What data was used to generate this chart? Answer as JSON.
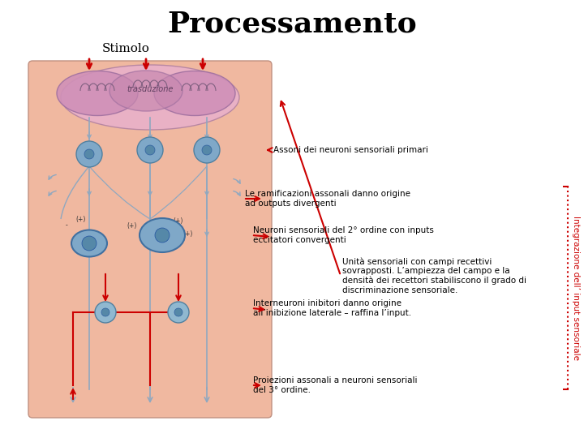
{
  "title": "Processamento",
  "title_fontsize": 26,
  "title_font": "serif",
  "stimolo_label": "Stimolo",
  "trasduzione_label": "trasduzione",
  "annotation1": "Unità sensoriali con campi recettivi\nsovrapposti. L’ampiezza del campo e la\ndensità dei recettori stabiliscono il grado di\ndiscriminazione sensoriale.",
  "annotation2": "Assoni dei neuroni sensoriali primari",
  "annotation3": "Le ramificazioni assonali danno origine\nad outputs divergenti",
  "annotation4": "Neuroni sensoriali del 2° ordine con inputs\neccitatori convergenti",
  "annotation5": "Interneuroni inibitori danno origine\nall’inibizione laterale – raffina l’input.",
  "annotation6": "Proiezioni assonali a neuroni sensoriali\ndel 3° ordine.",
  "side_label": "Integrazione dell’ input sensoriale",
  "bg_color": "#f5c8b8",
  "skin_color": "#f0b8a0",
  "receptor_color": "#d4a0c0",
  "neuron_color": "#7fa8c8",
  "neuron_dark": "#5588a8",
  "arrow_color": "#8fa8c0",
  "red_color": "#cc0000",
  "text_color": "#000000",
  "white_bg": "#ffffff"
}
